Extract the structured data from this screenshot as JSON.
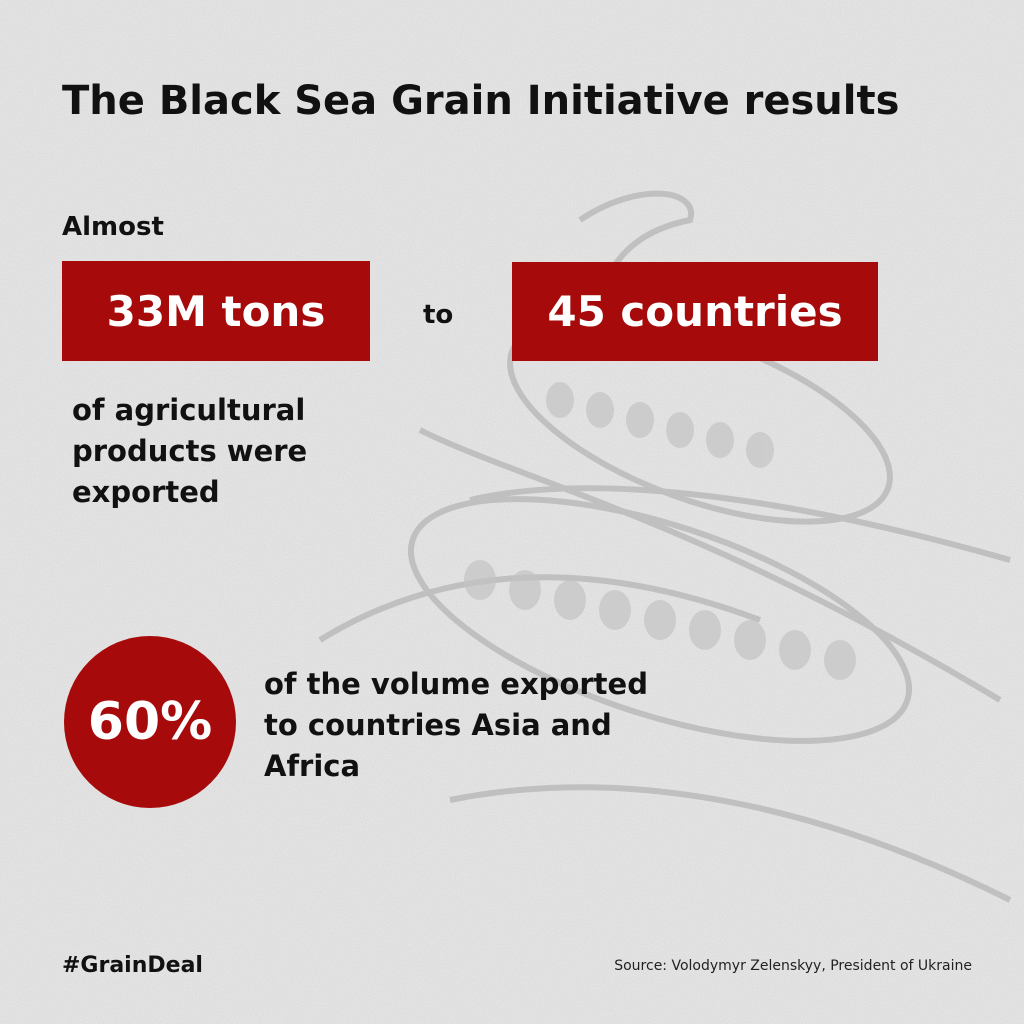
{
  "header": {
    "title": "The Black Sea Grain Initiative results"
  },
  "stat_exports": {
    "lead": "Almost",
    "tons": "33M tons",
    "joiner": "to",
    "countries": "45 countries",
    "caption_lines": [
      "of agricultural",
      "products were",
      "exported"
    ]
  },
  "stat_share": {
    "percent": "60%",
    "caption_lines": [
      "of the volume exported",
      "to countries Asia and",
      "Africa"
    ]
  },
  "footer": {
    "hashtag": "#GrainDeal",
    "source": "Source: Volodymyr Zelenskyy, President of Ukraine"
  }
}
